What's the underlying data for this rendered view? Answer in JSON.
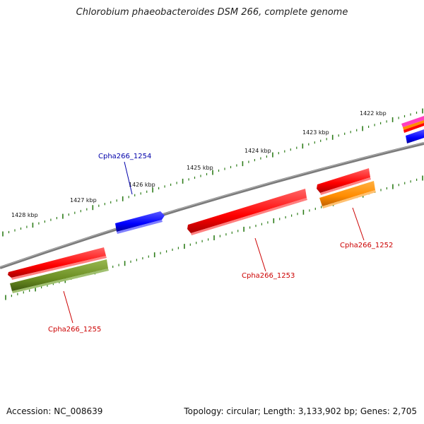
{
  "title": "Chlorobium phaeobacteroides DSM 266, complete genome",
  "footer": {
    "accession": "Accession: NC_008639",
    "summary": "Topology: circular; Length: 3,133,902 bp; Genes: 2,705"
  },
  "colors": {
    "backbone": "#7a7a7a",
    "tick": "#2e7d1a",
    "red": "#ff0000",
    "blue": "#0000ff",
    "orange": "#ff8c00",
    "olive": "#6b8e23",
    "label_red": "#cc0000",
    "label_blue": "#0000aa"
  },
  "scale": {
    "tick_labels": [
      "1422 kbp",
      "1423 kbp",
      "1424 kbp",
      "1425 kbp",
      "1426 kbp",
      "1427 kbp",
      "1428 kbp"
    ]
  },
  "genes": [
    {
      "label": "Cpha266_1254",
      "strand": "forward",
      "color": "blue",
      "labeled": true
    },
    {
      "label": "Cpha266_1253",
      "strand": "reverse",
      "color": "red",
      "labeled": true
    },
    {
      "label": "Cpha266_1252",
      "strand": "reverse",
      "color": "orange",
      "labeled": true
    },
    {
      "label": "Cpha266_1255",
      "strand": "reverse",
      "color": "olive",
      "labeled": true
    }
  ]
}
